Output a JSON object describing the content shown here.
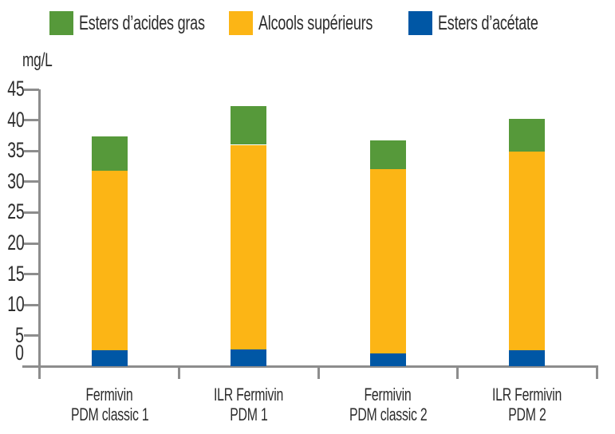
{
  "page": {
    "background": "#ffffff",
    "text_color": "#2c2c2c",
    "axis_color": "#8d8d8d"
  },
  "legend": {
    "position": "top",
    "items": [
      {
        "label": "Esters d’acides gras",
        "color": "#56993a"
      },
      {
        "label": "Alcools supérieurs",
        "color": "#fcb515"
      },
      {
        "label": "Esters d’acétate",
        "color": "#0057a5"
      }
    ]
  },
  "chart_data": {
    "type": "bar",
    "stacked": true,
    "title": "",
    "ylabel": "mg/L",
    "xlabel": "",
    "ylim": [
      0,
      45
    ],
    "ytick_interval": 5,
    "yticks": [
      0,
      5,
      10,
      15,
      20,
      25,
      30,
      35,
      40,
      45
    ],
    "grid": false,
    "legend_position": "top",
    "categories": [
      {
        "line1": "Fermivin",
        "line2": "PDM classic 1"
      },
      {
        "line1": "ILR Fermivin",
        "line2": "PDM 1"
      },
      {
        "line1": "Fermivin",
        "line2": "PDM classic 2"
      },
      {
        "line1": "ILR Fermivin",
        "line2": "PDM 2"
      }
    ],
    "series": [
      {
        "name": "Esters d’acétate",
        "color": "#0057a5",
        "values": [
          2.7,
          2.8,
          2.2,
          2.6
        ]
      },
      {
        "name": "Alcools supérieurs",
        "color": "#fcb515",
        "values": [
          29.1,
          33.2,
          29.9,
          32.3
        ]
      },
      {
        "name": "Esters d’acides gras",
        "color": "#56993a",
        "values": [
          5.5,
          6.3,
          4.6,
          5.3
        ]
      }
    ],
    "totals": [
      37.3,
      42.3,
      36.7,
      40.2
    ]
  }
}
